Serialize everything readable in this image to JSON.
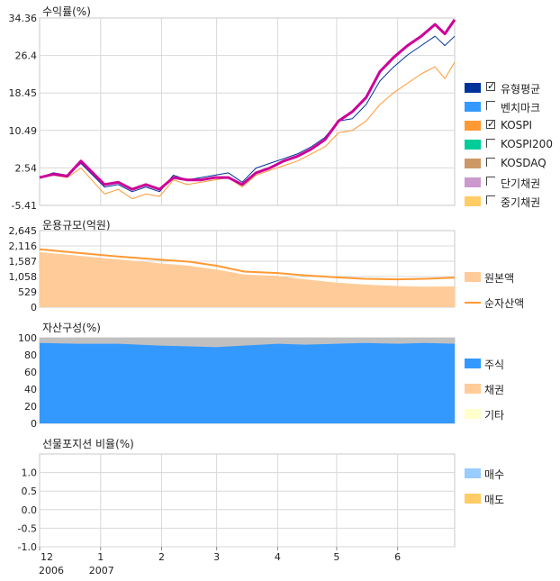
{
  "colors": {
    "group_avg": "#003399",
    "benchmark": "#3399ff",
    "kospi": "#ff9933",
    "kospi200": "#00cc99",
    "kosdaq": "#cc9966",
    "short_bond": "#cc99cc",
    "mid_bond": "#ffcc66",
    "fund": "#cc0099",
    "principal": "#ffcc99",
    "net_asset": "#ff9933",
    "stock": "#3399ff",
    "bond": "#ffcc99",
    "other": "#ffffcc",
    "buy": "#99ccff",
    "sell": "#ffcc66"
  },
  "x_axis": {
    "month_labels": [
      "12",
      "1",
      "2",
      "3",
      "4",
      "5",
      "6"
    ],
    "year_labels": [
      "2006",
      "2007"
    ]
  },
  "chart_data": [
    {
      "type": "line",
      "title": "수익률(%)",
      "ylim": [
        -5.41,
        34.36
      ],
      "y_ticks": [
        "34.36",
        "26.4",
        "18.45",
        "10.49",
        "2.54",
        "-5.41"
      ],
      "x_start": "2006-12-01",
      "x_end": "2007-06-30",
      "grid": true,
      "legend_position": "right",
      "series": [
        {
          "name": "유형평균",
          "checked": true,
          "color_key": "group_avg",
          "dates": [
            "2006-12-01",
            "2006-12-08",
            "2006-12-15",
            "2006-12-22",
            "2007-01-03",
            "2007-01-10",
            "2007-01-17",
            "2007-01-24",
            "2007-01-31",
            "2007-02-07",
            "2007-02-14",
            "2007-02-21",
            "2007-02-28",
            "2007-03-07",
            "2007-03-14",
            "2007-03-21",
            "2007-03-28",
            "2007-04-04",
            "2007-04-11",
            "2007-04-18",
            "2007-04-25",
            "2007-05-02",
            "2007-05-09",
            "2007-05-16",
            "2007-05-23",
            "2007-05-30",
            "2007-06-06",
            "2007-06-13",
            "2007-06-20",
            "2007-06-25",
            "2007-06-30"
          ],
          "values": [
            0.5,
            1.5,
            1.0,
            3.5,
            -1.5,
            -1.0,
            -2.5,
            -1.5,
            -2.5,
            1.0,
            0.0,
            0.5,
            1.0,
            1.5,
            -0.5,
            2.5,
            3.5,
            4.5,
            5.5,
            7.0,
            9.0,
            12.5,
            13.0,
            16.0,
            21.0,
            24.0,
            26.5,
            28.5,
            30.5,
            28.5,
            30.5
          ]
        },
        {
          "name": "벤치마크",
          "checked": false,
          "color_key": "benchmark",
          "dates": [],
          "values": []
        },
        {
          "name": "KOSPI",
          "checked": true,
          "color_key": "kospi",
          "dates": [
            "2006-12-01",
            "2006-12-08",
            "2006-12-15",
            "2006-12-22",
            "2007-01-03",
            "2007-01-10",
            "2007-01-17",
            "2007-01-24",
            "2007-01-31",
            "2007-02-07",
            "2007-02-14",
            "2007-02-21",
            "2007-02-28",
            "2007-03-07",
            "2007-03-14",
            "2007-03-21",
            "2007-03-28",
            "2007-04-04",
            "2007-04-11",
            "2007-04-18",
            "2007-04-25",
            "2007-05-02",
            "2007-05-09",
            "2007-05-16",
            "2007-05-23",
            "2007-05-30",
            "2007-06-06",
            "2007-06-13",
            "2007-06-20",
            "2007-06-25",
            "2007-06-30"
          ],
          "values": [
            0.5,
            1.0,
            0.5,
            2.5,
            -3.0,
            -2.0,
            -4.0,
            -3.0,
            -3.5,
            0.0,
            -1.0,
            -0.5,
            0.0,
            0.5,
            -1.5,
            1.0,
            2.0,
            3.0,
            4.0,
            5.5,
            7.0,
            10.0,
            10.5,
            12.5,
            16.0,
            18.5,
            20.5,
            22.5,
            24.0,
            21.5,
            25.0
          ]
        },
        {
          "name": "KOSPI200",
          "checked": false,
          "color_key": "kospi200",
          "dates": [],
          "values": []
        },
        {
          "name": "KOSDAQ",
          "checked": false,
          "color_key": "kosdaq",
          "dates": [],
          "values": []
        },
        {
          "name": "단기채권",
          "checked": false,
          "color_key": "short_bond",
          "dates": [],
          "values": []
        },
        {
          "name": "중기채권",
          "checked": false,
          "color_key": "mid_bond",
          "dates": [],
          "values": []
        }
      ],
      "highlight_series": {
        "color_key": "fund",
        "dates": [
          "2006-12-01",
          "2006-12-08",
          "2006-12-15",
          "2006-12-22",
          "2007-01-03",
          "2007-01-10",
          "2007-01-17",
          "2007-01-24",
          "2007-01-31",
          "2007-02-07",
          "2007-02-14",
          "2007-02-21",
          "2007-02-28",
          "2007-03-07",
          "2007-03-14",
          "2007-03-21",
          "2007-03-28",
          "2007-04-04",
          "2007-04-11",
          "2007-04-18",
          "2007-04-25",
          "2007-05-02",
          "2007-05-09",
          "2007-05-16",
          "2007-05-23",
          "2007-05-30",
          "2007-06-06",
          "2007-06-13",
          "2007-06-20",
          "2007-06-25",
          "2007-06-30"
        ],
        "values": [
          0.5,
          1.2,
          0.8,
          4.0,
          -1.0,
          -0.5,
          -2.0,
          -1.0,
          -2.0,
          0.5,
          0.0,
          0.0,
          0.5,
          0.5,
          -1.0,
          1.5,
          2.5,
          4.0,
          5.0,
          6.5,
          8.5,
          12.5,
          14.5,
          17.5,
          23.0,
          26.0,
          28.5,
          30.5,
          33.0,
          31.0,
          34.0
        ]
      }
    },
    {
      "type": "area",
      "title": "운용규모(억원)",
      "ylim": [
        0,
        2645
      ],
      "y_ticks": [
        "2,645",
        "2,116",
        "1,587",
        "1,058",
        "529",
        "0"
      ],
      "x_start": "2006-12-01",
      "x_end": "2007-06-30",
      "grid": true,
      "legend_position": "right",
      "dates": [
        "2006-12-01",
        "2006-12-20",
        "2007-01-10",
        "2007-01-31",
        "2007-02-15",
        "2007-03-01",
        "2007-03-15",
        "2007-04-01",
        "2007-04-15",
        "2007-05-01",
        "2007-05-15",
        "2007-06-01",
        "2007-06-15",
        "2007-06-30"
      ],
      "series": [
        {
          "name": "원본액",
          "color_key": "principal",
          "values": [
            1900,
            1780,
            1650,
            1520,
            1430,
            1300,
            1130,
            1080,
            960,
            850,
            780,
            730,
            710,
            720
          ]
        },
        {
          "name": "순자산액",
          "color_key": "net_asset",
          "values": [
            2000,
            1880,
            1750,
            1640,
            1570,
            1430,
            1230,
            1180,
            1100,
            1030,
            980,
            960,
            980,
            1020
          ]
        }
      ]
    },
    {
      "type": "area",
      "title": "자산구성(%)",
      "ylim": [
        0,
        100
      ],
      "y_ticks": [
        "100",
        "80",
        "60",
        "40",
        "20",
        "0"
      ],
      "x_start": "2006-12-01",
      "x_end": "2007-06-30",
      "grid": true,
      "legend_position": "right",
      "dates": [
        "2006-12-01",
        "2006-12-20",
        "2007-01-10",
        "2007-01-31",
        "2007-02-15",
        "2007-03-01",
        "2007-03-15",
        "2007-04-01",
        "2007-04-15",
        "2007-05-01",
        "2007-05-15",
        "2007-06-01",
        "2007-06-15",
        "2007-06-30"
      ],
      "series": [
        {
          "name": "주식",
          "color_key": "stock",
          "values": [
            94,
            93,
            93,
            91,
            90,
            89,
            91,
            93,
            92,
            93,
            94,
            93,
            94,
            93
          ]
        },
        {
          "name": "채권",
          "color_key": "bond",
          "values": [
            0,
            0,
            0,
            0,
            0,
            0,
            0,
            0,
            0,
            0,
            0,
            0,
            0,
            0
          ]
        },
        {
          "name": "기타",
          "color_key": "other",
          "values": [
            6,
            7,
            7,
            9,
            10,
            11,
            9,
            7,
            8,
            7,
            6,
            7,
            6,
            7
          ]
        }
      ]
    },
    {
      "type": "bar",
      "title": "선물포지션 비율(%)",
      "ylim": [
        -1.0,
        1.5
      ],
      "y_ticks": [
        "1.0",
        "0.5",
        "0.0",
        "-0.5",
        "-1.0"
      ],
      "x_start": "2006-12-01",
      "x_end": "2007-06-30",
      "grid": true,
      "legend_position": "right",
      "series": [
        {
          "name": "매수",
          "color_key": "buy",
          "values": []
        },
        {
          "name": "매도",
          "color_key": "sell",
          "values": []
        }
      ]
    }
  ]
}
